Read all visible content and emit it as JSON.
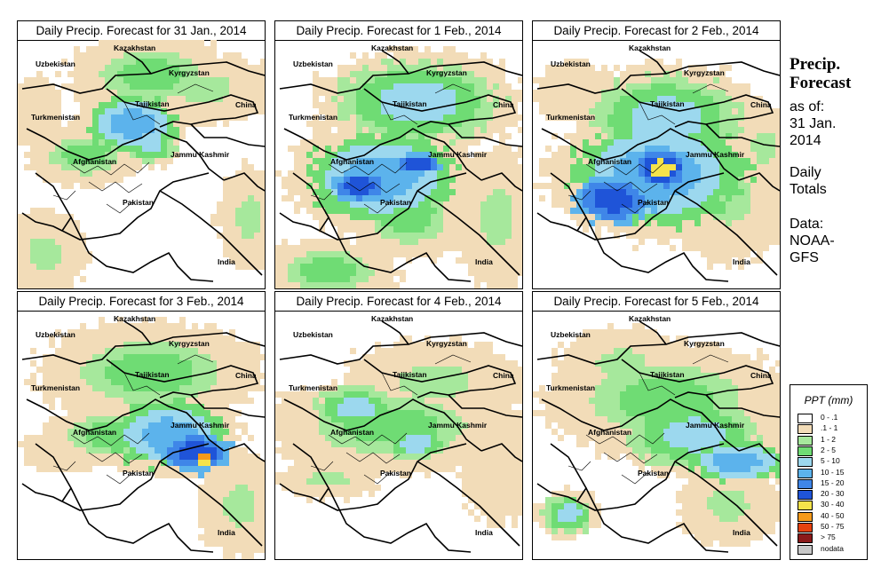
{
  "panels": [
    {
      "title": "Daily Precip. Forecast for  31 Jan., 2014",
      "pattern": "jan31"
    },
    {
      "title": "Daily Precip. Forecast for  1 Feb., 2014",
      "pattern": "feb1"
    },
    {
      "title": "Daily Precip. Forecast for  2 Feb., 2014",
      "pattern": "feb2"
    },
    {
      "title": "Daily Precip. Forecast for  3 Feb., 2014",
      "pattern": "feb3"
    },
    {
      "title": "Daily Precip. Forecast for  4 Feb., 2014",
      "pattern": "feb4"
    },
    {
      "title": "Daily Precip. Forecast for  5 Feb., 2014",
      "pattern": "feb5"
    }
  ],
  "map_labels": [
    "Kazakhstan",
    "Uzbekistan",
    "Kyrgyzstan",
    "Tajikistan",
    "China",
    "Turkmenistan",
    "Jammu Kashmir",
    "Afghanistan",
    "Pakistan",
    "India"
  ],
  "sidebar": {
    "title_line1": "Precip.",
    "title_line2": "Forecast",
    "asof_line1": "as of:",
    "asof_line2": "31 Jan.",
    "asof_line3": "2014",
    "daily_line1": "Daily",
    "daily_line2": "Totals",
    "data_line1": "Data:",
    "data_line2": "NOAA-",
    "data_line3": "GFS"
  },
  "legend": {
    "title": "PPT (mm)",
    "items": [
      {
        "label": "0 - .1",
        "color": "#ffffff"
      },
      {
        "label": ".1 - 1",
        "color": "#f2dcb8"
      },
      {
        "label": "1 - 2",
        "color": "#a6e89c"
      },
      {
        "label": "2 - 5",
        "color": "#6fdc74"
      },
      {
        "label": "5 - 10",
        "color": "#9cd8ee"
      },
      {
        "label": "10 - 15",
        "color": "#5cb3ec"
      },
      {
        "label": "15 - 20",
        "color": "#3f86e8"
      },
      {
        "label": "20 - 30",
        "color": "#1f54d8"
      },
      {
        "label": "30 - 40",
        "color": "#f5e34a"
      },
      {
        "label": "40 - 50",
        "color": "#f59a1a"
      },
      {
        "label": "50 - 75",
        "color": "#e6420f"
      },
      {
        "label": "> 75",
        "color": "#8b1a1a"
      },
      {
        "label": "nodata",
        "color": "#c8c8c8"
      }
    ]
  }
}
